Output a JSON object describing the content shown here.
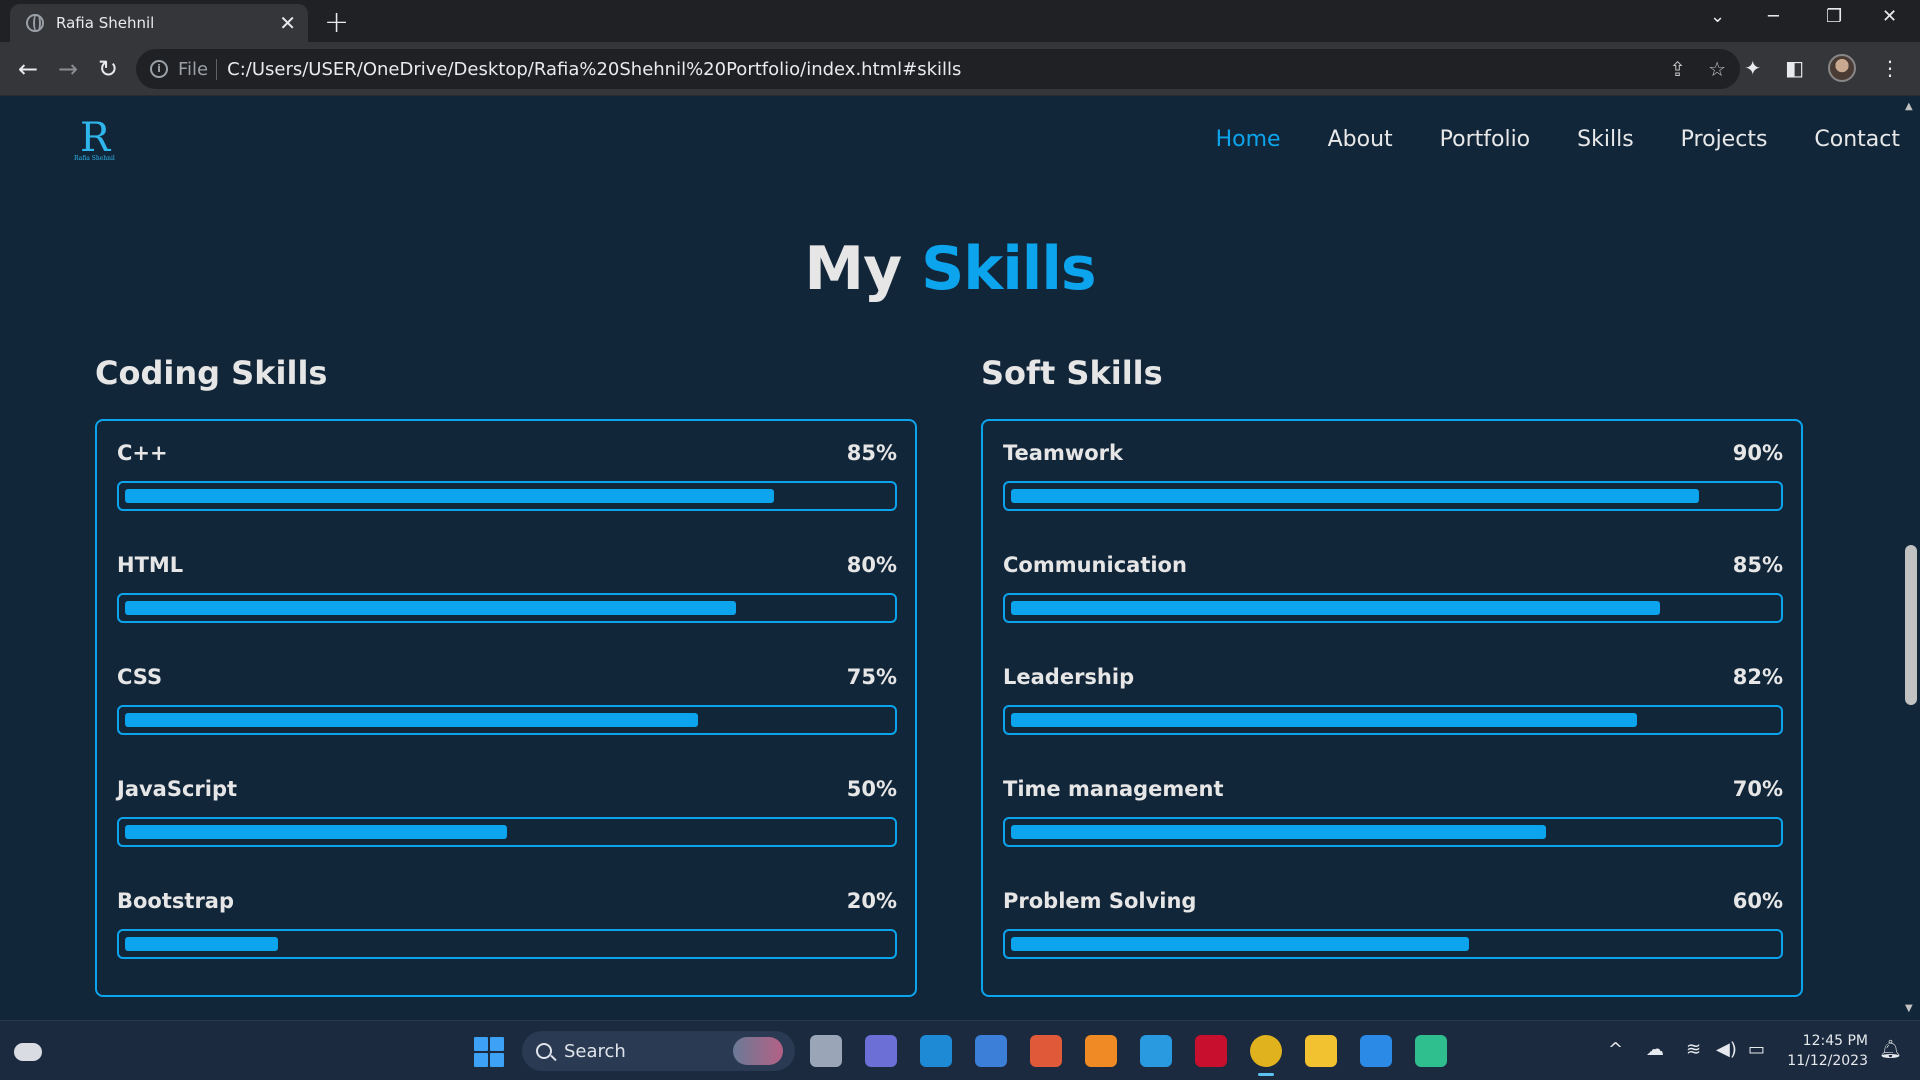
{
  "browser": {
    "tab_title": "Rafia Shehnil",
    "tab_close": "✕",
    "new_tab": "+",
    "scheme": "File",
    "url": "C:/Users/USER/OneDrive/Desktop/Rafia%20Shehnil%20Portfolio/index.html#skills"
  },
  "site": {
    "logo_mark": "R",
    "logo_text": "Rafia Shehnil",
    "nav": [
      {
        "label": "Home",
        "active": true
      },
      {
        "label": "About",
        "active": false
      },
      {
        "label": "Portfolio",
        "active": false
      },
      {
        "label": "Skills",
        "active": false
      },
      {
        "label": "Projects",
        "active": false
      },
      {
        "label": "Contact",
        "active": false
      }
    ],
    "heading_plain": "My",
    "heading_accent": "Skills",
    "accent_color": "#0ca4ec"
  },
  "coding": {
    "title": "Coding Skills",
    "skills": [
      {
        "name": "C++",
        "percent": "85%",
        "level": 85
      },
      {
        "name": "HTML",
        "percent": "80%",
        "level": 80
      },
      {
        "name": "CSS",
        "percent": "75%",
        "level": 75
      },
      {
        "name": "JavaScript",
        "percent": "50%",
        "level": 50
      },
      {
        "name": "Bootstrap",
        "percent": "20%",
        "level": 20
      }
    ]
  },
  "soft": {
    "title": "Soft Skills",
    "skills": [
      {
        "name": "Teamwork",
        "percent": "90%",
        "level": 90
      },
      {
        "name": "Communication",
        "percent": "85%",
        "level": 85
      },
      {
        "name": "Leadership",
        "percent": "82%",
        "level": 82
      },
      {
        "name": "Time management",
        "percent": "70%",
        "level": 70
      },
      {
        "name": "Problem Solving",
        "percent": "60%",
        "level": 60
      }
    ]
  },
  "taskbar": {
    "search_label": "Search",
    "time": "12:45 PM",
    "date": "11/12/2023",
    "apps": [
      "task-view-icon",
      "teams-chat-icon",
      "myhp-icon",
      "store-icon",
      "git-icon",
      "firefox-icon",
      "help-icon",
      "mcafee-icon",
      "chrome-icon",
      "file-explorer-icon",
      "vscode-icon",
      "edge-icon"
    ]
  }
}
